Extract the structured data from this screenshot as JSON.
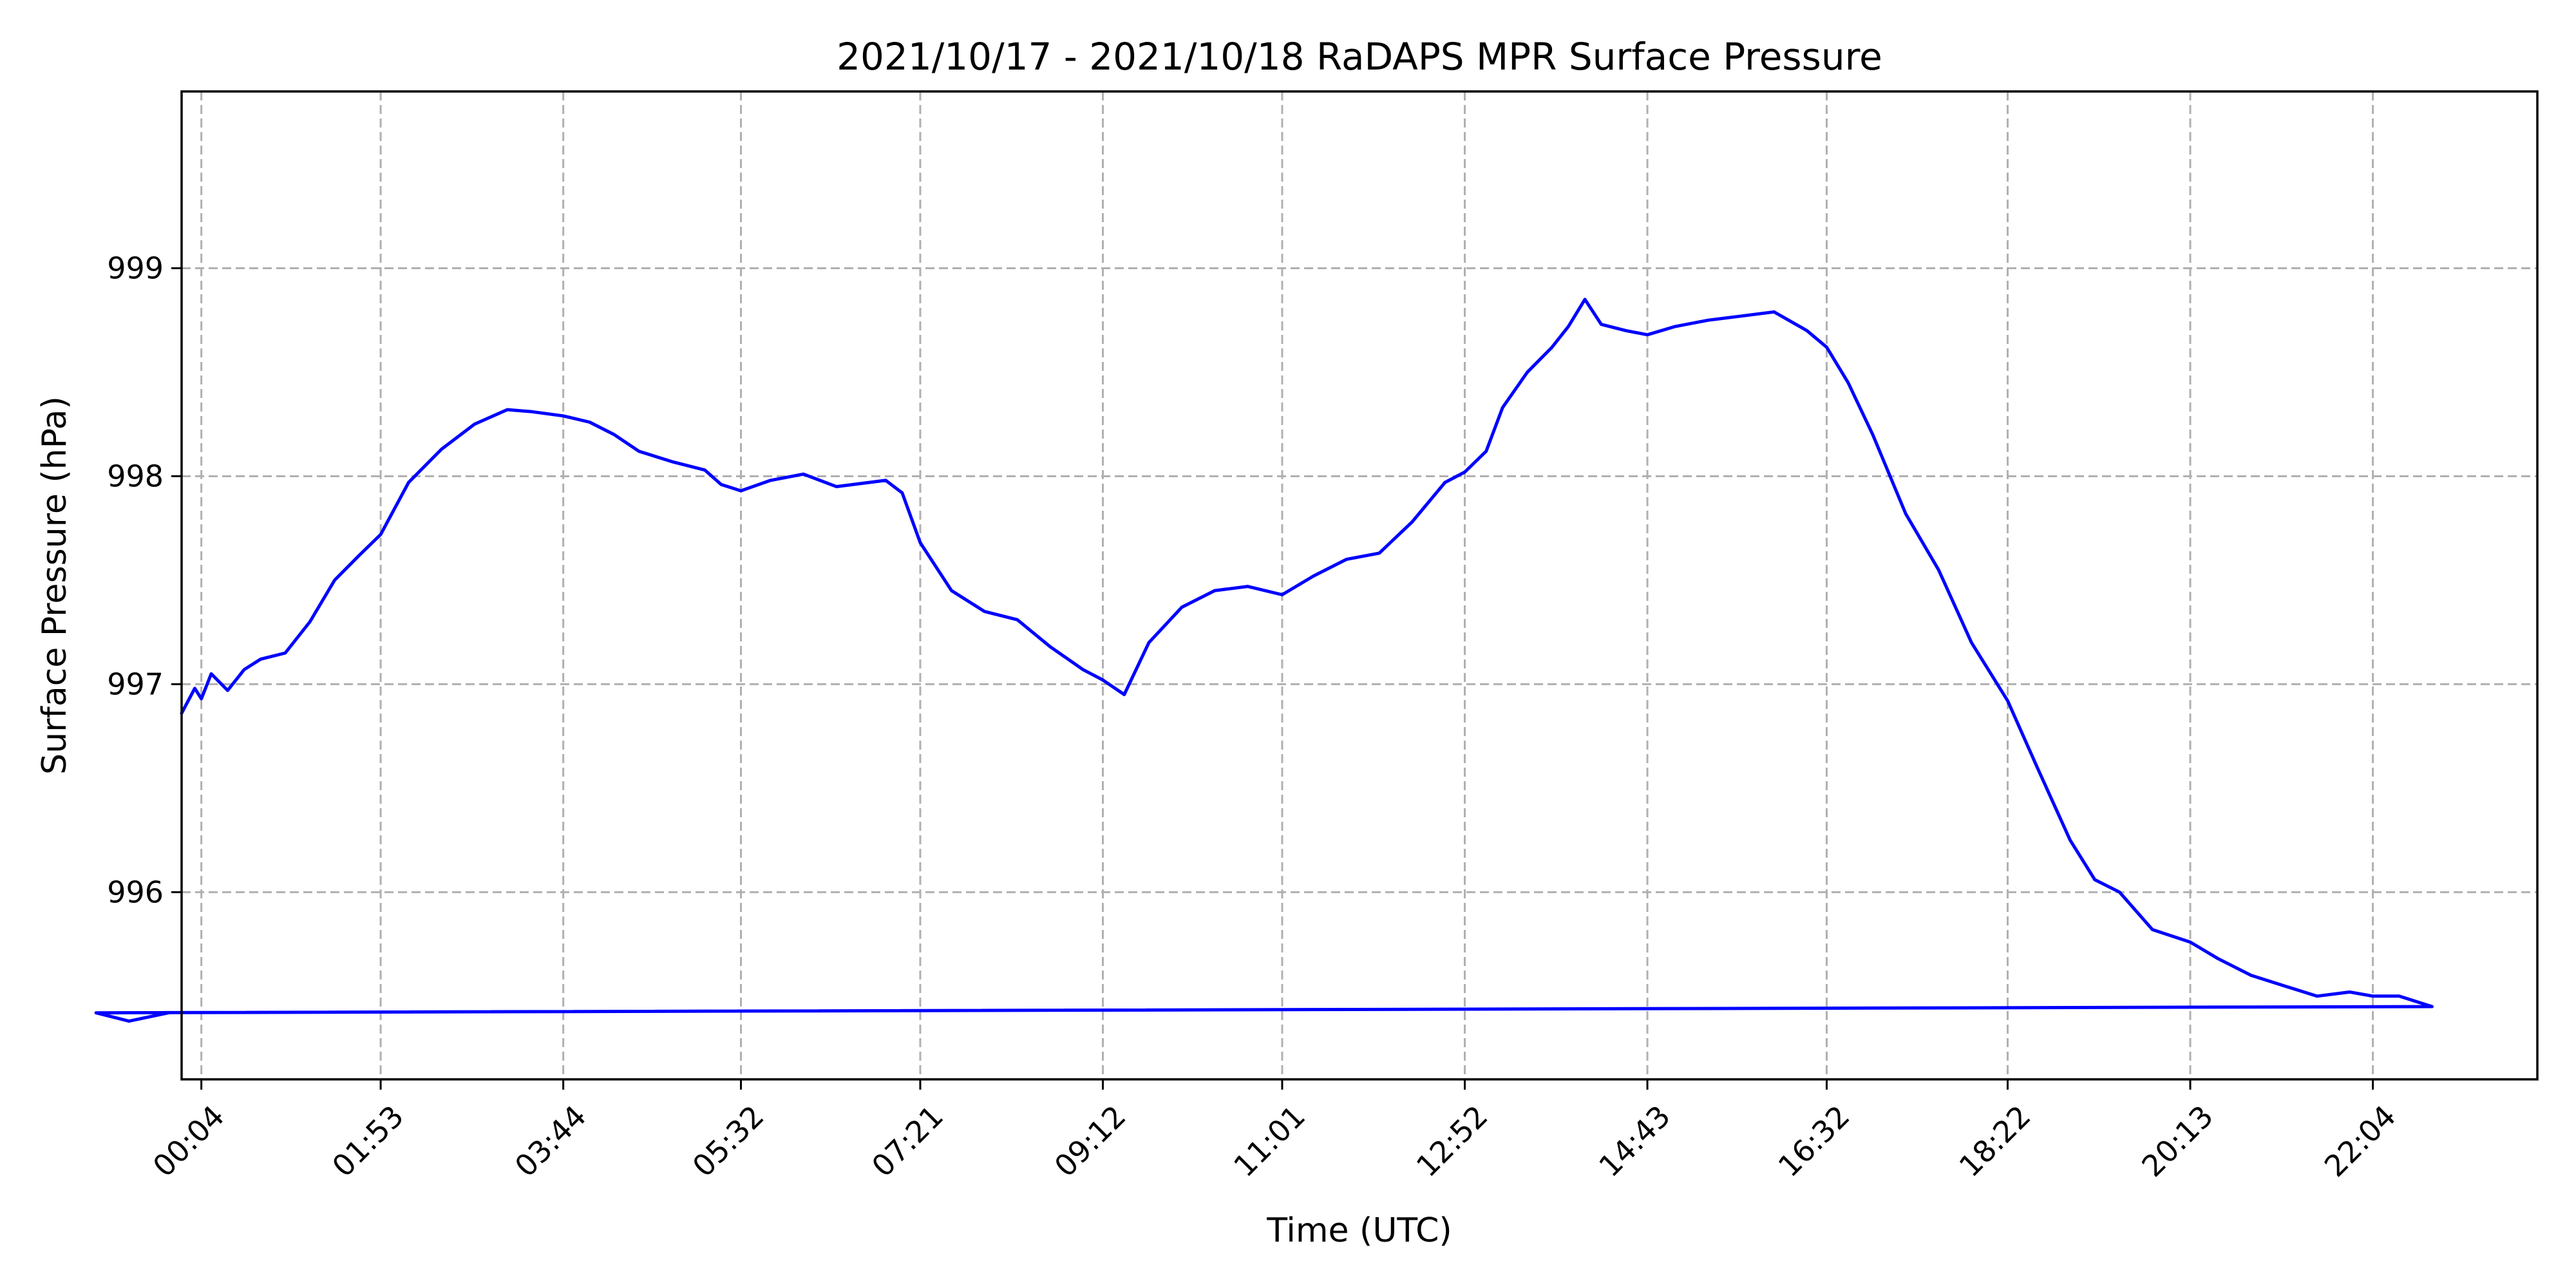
{
  "chart_data": {
    "type": "line",
    "title": "2021/10/17 - 2021/10/18 RaDAPS MPR Surface Pressure",
    "xlabel": "Time (UTC)",
    "ylabel": "Surface Pressure (hPa)",
    "xlim": [
      "23:52",
      "23:44"
    ],
    "ylim": [
      995.1,
      999.85
    ],
    "x_ticks": [
      "00:04",
      "01:53",
      "03:44",
      "05:32",
      "07:21",
      "09:12",
      "11:01",
      "12:52",
      "14:43",
      "16:32",
      "18:22",
      "20:13",
      "22:04"
    ],
    "y_ticks": [
      996,
      997,
      998,
      999
    ],
    "grid": true,
    "legend": "none",
    "series": [
      {
        "color": "#0000ff",
        "x": [
          "23:52",
          "00:00",
          "00:04",
          "00:10",
          "00:20",
          "00:30",
          "00:40",
          "00:55",
          "01:10",
          "01:25",
          "01:40",
          "01:53",
          "02:10",
          "02:30",
          "02:50",
          "03:10",
          "03:25",
          "03:44",
          "04:00",
          "04:15",
          "04:30",
          "04:50",
          "05:10",
          "05:20",
          "05:32",
          "05:50",
          "06:10",
          "06:30",
          "06:50",
          "07:00",
          "07:10",
          "07:21",
          "07:40",
          "08:00",
          "08:20",
          "08:40",
          "09:00",
          "09:12",
          "09:25",
          "09:40",
          "10:00",
          "10:20",
          "10:40",
          "11:01",
          "11:20",
          "11:40",
          "12:00",
          "12:20",
          "12:40",
          "12:52",
          "13:05",
          "13:15",
          "13:30",
          "13:45",
          "13:55",
          "14:05",
          "14:15",
          "14:30",
          "14:43",
          "15:00",
          "15:20",
          "15:40",
          "16:00",
          "16:20",
          "16:32",
          "16:45",
          "17:00",
          "17:20",
          "17:40",
          "18:00",
          "18:22",
          "18:40",
          "19:00",
          "19:15",
          "19:30",
          "19:50",
          "20:13",
          "20:30",
          "20:50",
          "21:10",
          "21:30",
          "21:50",
          "22:04",
          "22:20",
          "22:40",
          "23:00",
          "23:20",
          "23:44"
        ],
        "y": [
          996.86,
          996.98,
          996.93,
          997.05,
          996.97,
          997.07,
          997.12,
          997.15,
          997.3,
          997.5,
          997.62,
          997.72,
          997.97,
          998.13,
          998.25,
          998.32,
          998.31,
          998.29,
          998.26,
          998.2,
          998.12,
          998.07,
          998.03,
          997.96,
          997.93,
          997.98,
          998.01,
          997.95,
          997.97,
          997.98,
          997.92,
          997.68,
          997.45,
          997.35,
          997.31,
          997.18,
          997.07,
          997.02,
          996.95,
          997.2,
          997.37,
          997.45,
          997.47,
          997.43,
          997.52,
          997.6,
          997.63,
          997.78,
          997.97,
          998.02,
          998.12,
          998.33,
          998.5,
          998.62,
          998.72,
          998.85,
          998.73,
          998.7,
          998.68,
          998.72,
          998.75,
          998.77,
          998.79,
          998.7,
          998.62,
          998.45,
          998.2,
          997.82,
          997.55,
          997.2,
          996.92,
          996.6,
          996.25,
          996.06,
          996.0,
          995.82,
          995.76,
          995.68,
          995.6,
          995.55,
          995.5,
          995.52,
          995.5,
          995.5,
          995.45,
          995.42,
          995.38,
          995.42
        ]
      }
    ]
  }
}
